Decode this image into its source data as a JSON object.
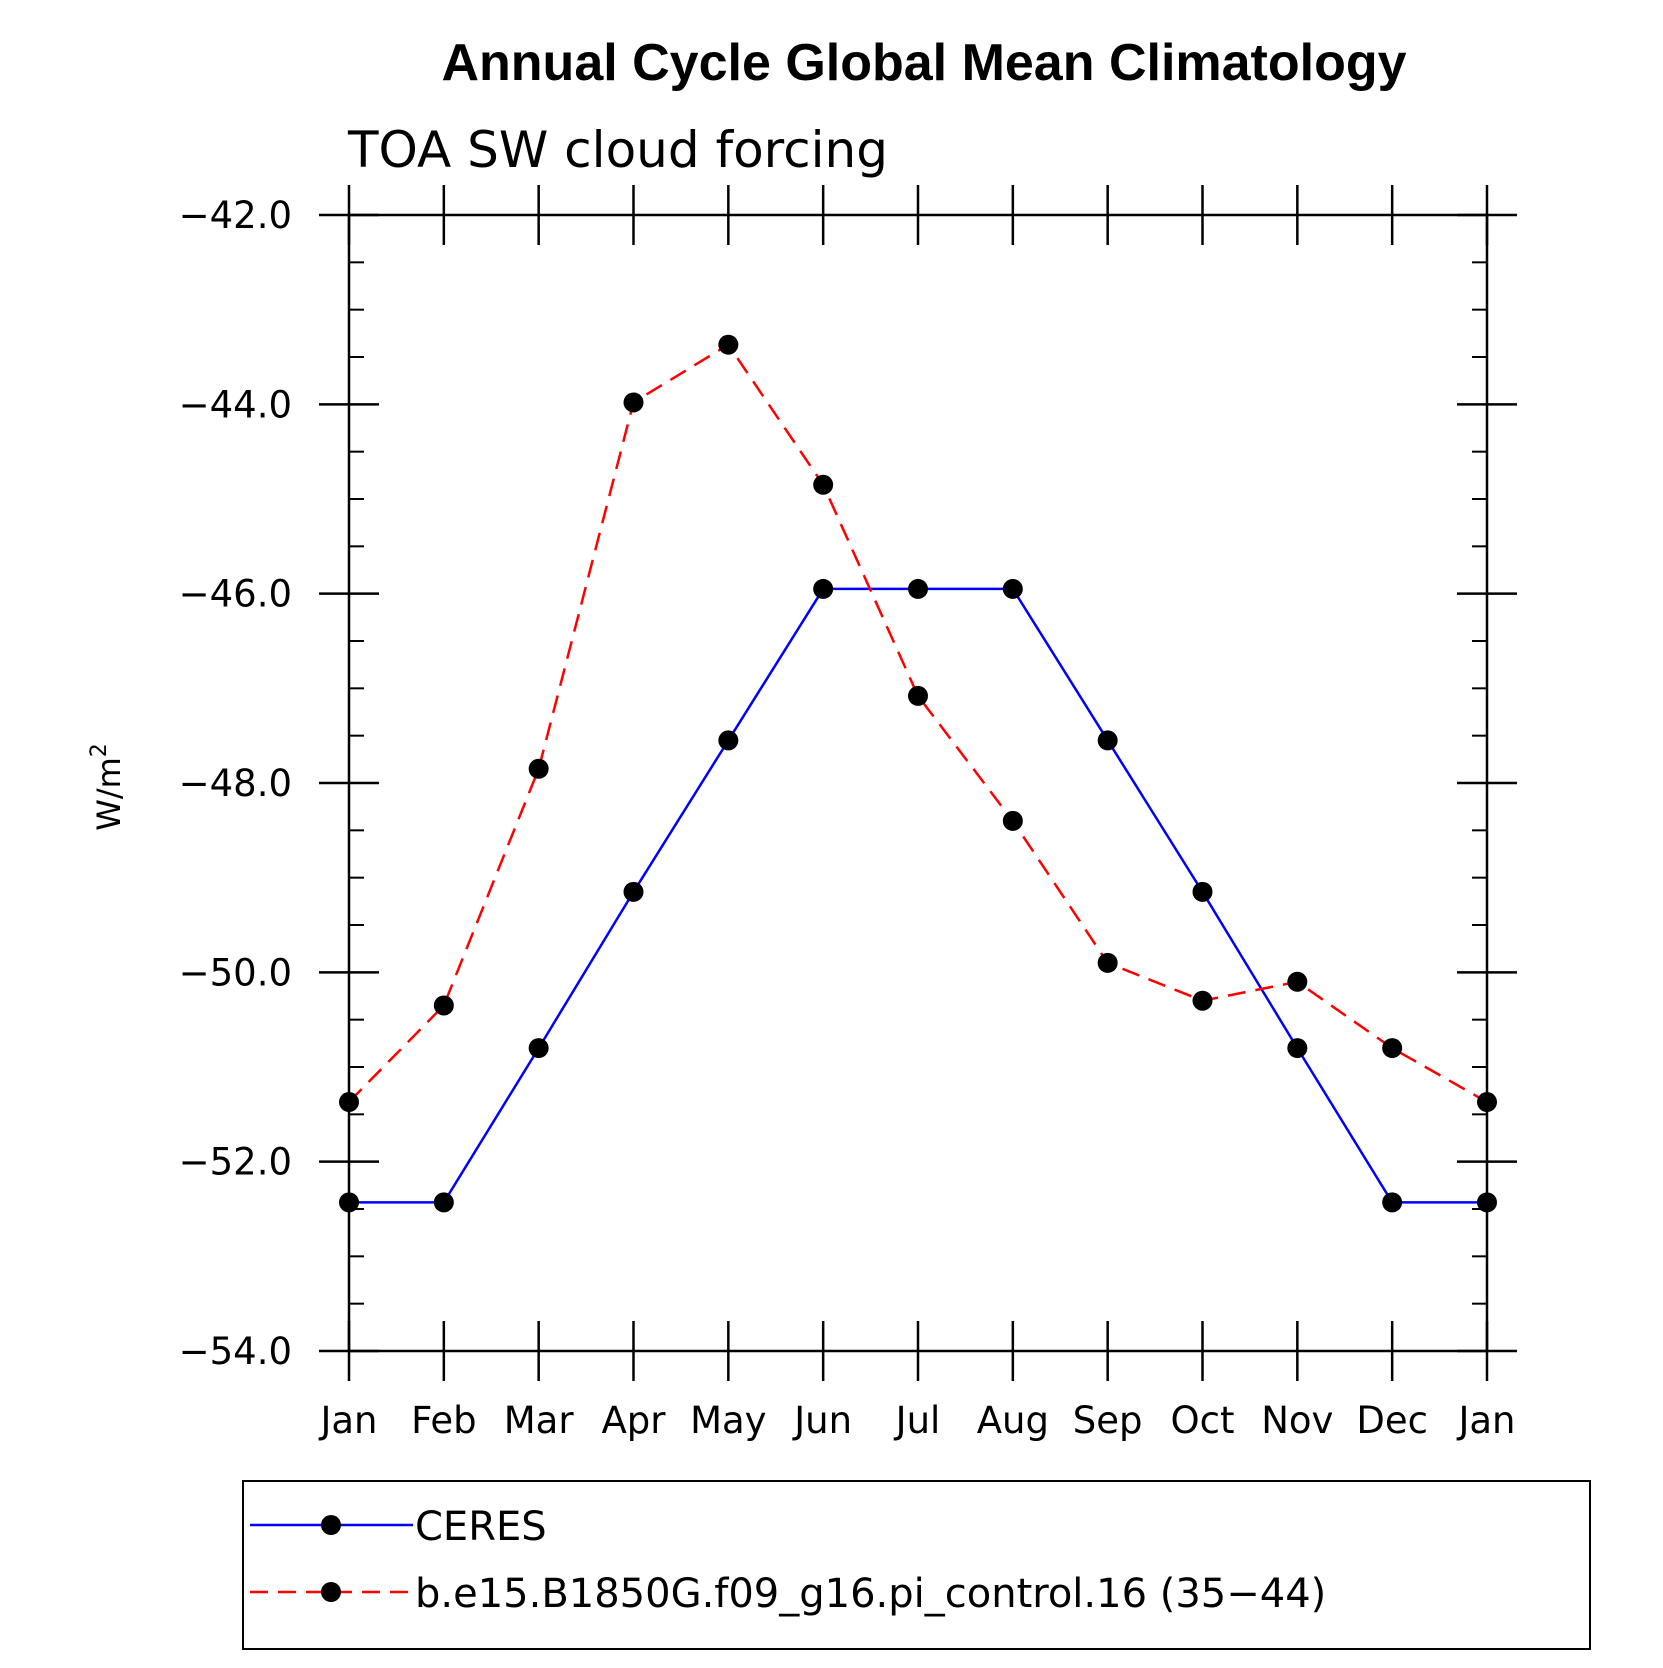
{
  "chart_data": {
    "type": "line",
    "title": "Annual Cycle Global Mean Climatology",
    "subtitle": "TOA SW cloud forcing",
    "xlabel": "",
    "ylabel": "W/m",
    "ylabel_superscript": "2",
    "categories": [
      "Jan",
      "Feb",
      "Mar",
      "Apr",
      "May",
      "Jun",
      "Jul",
      "Aug",
      "Sep",
      "Oct",
      "Nov",
      "Dec",
      "Jan"
    ],
    "ylim": [
      -54.0,
      -42.0
    ],
    "yticks": [
      -42.0,
      -44.0,
      -46.0,
      -48.0,
      -50.0,
      -52.0,
      -54.0
    ],
    "ytick_labels": [
      "−42.0",
      "−44.0",
      "−46.0",
      "−48.0",
      "−50.0",
      "−52.0",
      "−54.0"
    ],
    "series": [
      {
        "name": "CERES",
        "color": "#0000ff",
        "dash": "solid",
        "values": [
          -52.43,
          -52.43,
          -50.8,
          -49.15,
          -47.55,
          -45.95,
          -45.95,
          -45.95,
          -47.55,
          -49.15,
          -50.8,
          -52.43,
          -52.43
        ]
      },
      {
        "name": "b.e15.B1850G.f09_g16.pi_control.16 (35−44)",
        "color": "#ff0000",
        "dash": "dashed",
        "values": [
          -51.37,
          -50.35,
          -47.85,
          -43.98,
          -43.37,
          -44.85,
          -47.08,
          -48.4,
          -49.9,
          -50.3,
          -50.1,
          -50.8,
          -51.37
        ]
      }
    ],
    "marker_color": "#000000",
    "legend_position": "bottom",
    "grid": false
  }
}
